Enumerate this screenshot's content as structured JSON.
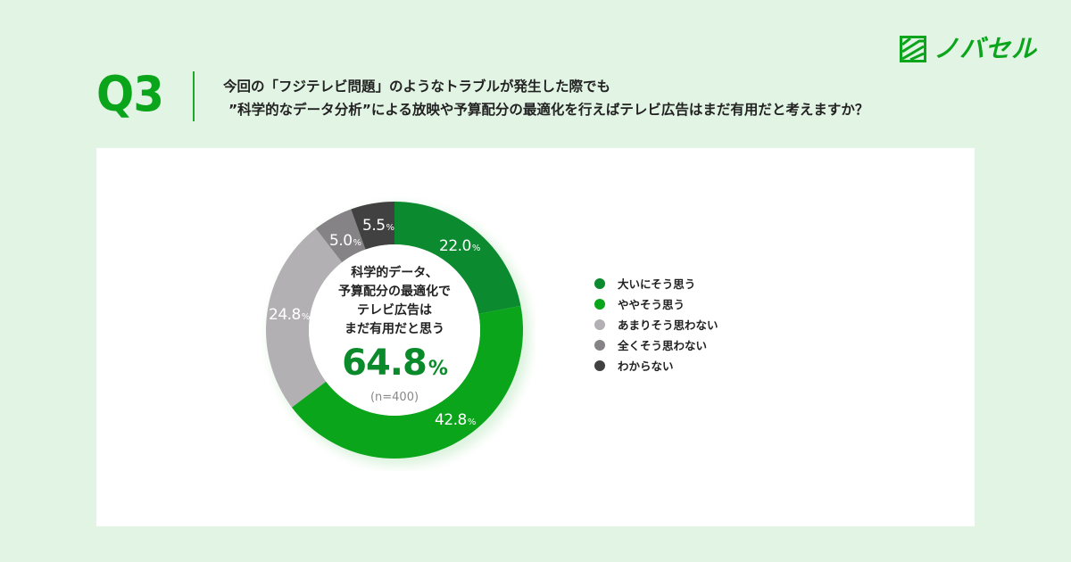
{
  "brand": {
    "name": "ノバセル",
    "color": "#0aa51a"
  },
  "header": {
    "question_number": "Q3",
    "question_line1": "今回の「フジテレビ問題」のようなトラブルが発生した際でも",
    "question_line2": "”科学的なデータ分析”による放映や予算配分の最適化を行えばテレビ広告はまだ有用だと考えますか？"
  },
  "center": {
    "caption": [
      "科学的データ、",
      "予算配分の最適化で",
      "テレビ広告は",
      "まだ有用だと思う"
    ],
    "value": "64.8",
    "value_unit": "%",
    "sample": "(n=400)"
  },
  "segment_labels": [
    {
      "value": "22.0",
      "unit": "%"
    },
    {
      "value": "42.8",
      "unit": "%"
    },
    {
      "value": "24.8",
      "unit": "%"
    },
    {
      "value": "5.0",
      "unit": "%"
    },
    {
      "value": "5.5",
      "unit": "%"
    }
  ],
  "legend": [
    {
      "label": "大いにそう思う",
      "color": "#0b8a2f"
    },
    {
      "label": "ややそう思う",
      "color": "#0aa51a"
    },
    {
      "label": "あまりそう思わない",
      "color": "#b3b0b4"
    },
    {
      "label": "全くそう思わない",
      "color": "#858385"
    },
    {
      "label": "わからない",
      "color": "#424142"
    }
  ],
  "chart_data": {
    "type": "pie",
    "variant": "donut",
    "title": "今回の「フジテレビ問題」のようなトラブルが発生した際でも ”科学的なデータ分析”による放映や予算配分の最適化を行えばテレビ広告はまだ有用だと考えますか？",
    "categories": [
      "大いにそう思う",
      "ややそう思う",
      "あまりそう思わない",
      "全くそう思わない",
      "わからない"
    ],
    "values": [
      22.0,
      42.8,
      24.8,
      5.0,
      5.5
    ],
    "unit": "%",
    "colors": [
      "#0b8a2f",
      "#0aa51a",
      "#b3b0b4",
      "#858385",
      "#424142"
    ],
    "center_annotation": {
      "text": "科学的データ、予算配分の最適化でテレビ広告はまだ有用だと思う",
      "value": 64.8,
      "sample_size": "n=400"
    },
    "start_angle": "12 o'clock",
    "direction": "clockwise",
    "legend_position": "right"
  }
}
